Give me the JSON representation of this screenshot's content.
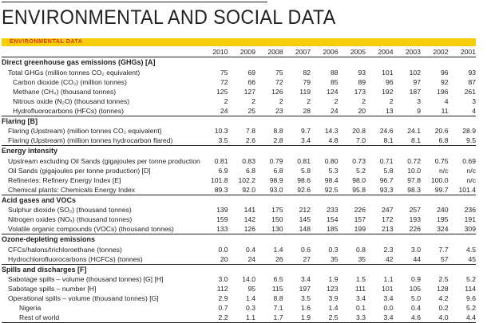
{
  "title": "ENVIRONMENTAL AND SOCIAL DATA",
  "section_bar": "ENVIRONMENTAL DATA",
  "accent_color": "#f6cd0a",
  "bar_text_color": "#e0301e",
  "years": [
    "2010",
    "2009",
    "2008",
    "2007",
    "2006",
    "2005",
    "2004",
    "2003",
    "2002",
    "2001"
  ],
  "sections": [
    {
      "heading": "Direct greenhouse gas emissions (GHGs) [A]",
      "rows": [
        {
          "label": "Total GHGs (million tonnes CO₂ equivalent)",
          "level": 1,
          "values": [
            "75",
            "69",
            "75",
            "82",
            "88",
            "93",
            "101",
            "102",
            "96",
            "93"
          ]
        },
        {
          "label": "Carbon dioxide (CO₂) (million tonnes)",
          "level": 2,
          "values": [
            "72",
            "66",
            "72",
            "79",
            "85",
            "89",
            "96",
            "97",
            "92",
            "87"
          ]
        },
        {
          "label": "Methane (CH₄) (thousand tonnes)",
          "level": 2,
          "values": [
            "125",
            "127",
            "126",
            "119",
            "124",
            "173",
            "192",
            "187",
            "196",
            "261"
          ]
        },
        {
          "label": "Nitrous oxide (N₂O) (thousand tonnes)",
          "level": 2,
          "values": [
            "2",
            "2",
            "2",
            "2",
            "2",
            "2",
            "2",
            "3",
            "4",
            "3"
          ]
        },
        {
          "label": "Hydrofluorocarbons (HFCs) (tonnes)",
          "level": 2,
          "values": [
            "24",
            "25",
            "23",
            "28",
            "24",
            "20",
            "13",
            "9",
            "11",
            "4"
          ]
        }
      ]
    },
    {
      "heading": "Flaring [B]",
      "rows": [
        {
          "label": "Flaring (Upstream) (million tonnes CO₂ equivalent)",
          "level": 1,
          "values": [
            "10.3",
            "7.8",
            "8.8",
            "9.7",
            "14.3",
            "20.8",
            "24.6",
            "24.1",
            "20.6",
            "28.9"
          ]
        },
        {
          "label": "Flaring (Upstream) (million tonnes hydrocarbon flared)",
          "level": 1,
          "values": [
            "3.5",
            "2.6",
            "2.8",
            "3.4",
            "4.8",
            "7.0",
            "8.1",
            "8.1",
            "6.8",
            "9.5"
          ]
        }
      ]
    },
    {
      "heading": "Energy intensity",
      "rows": [
        {
          "label": "Upstream excluding Oil Sands (gigajoules per tonne production) [C]",
          "level": 1,
          "values": [
            "0.81",
            "0.83",
            "0.79",
            "0.81",
            "0.80",
            "0.73",
            "0.71",
            "0.72",
            "0.75",
            "0.69"
          ]
        },
        {
          "label": "Oil Sands (gigajoules per tonne production) [D]",
          "level": 1,
          "values": [
            "6.9",
            "6.8",
            "6.8",
            "5.8",
            "5.3",
            "5.2",
            "5.8",
            "10.0",
            "n/c",
            "n/c"
          ]
        },
        {
          "label": "Refineries: Refinery Energy Index [E]",
          "level": 1,
          "values": [
            "101.8",
            "102.2",
            "98.9",
            "98.6",
            "98.4",
            "98.0",
            "96.7",
            "97.8",
            "100.0",
            "n/c"
          ]
        },
        {
          "label": "Chemical plants: Chemicals Energy Index",
          "level": 1,
          "values": [
            "89.3",
            "92.0",
            "93.0",
            "92.6",
            "92.5",
            "95.8",
            "93.3",
            "98.3",
            "99.7",
            "101.4"
          ]
        }
      ]
    },
    {
      "heading": "Acid gases and VOCs",
      "rows": [
        {
          "label": "Sulphur dioxide (SO₂) (thousand tonnes)",
          "level": 1,
          "values": [
            "139",
            "141",
            "175",
            "212",
            "233",
            "226",
            "247",
            "257",
            "240",
            "236"
          ]
        },
        {
          "label": "Nitrogen oxides (NOₓ) (thousand tonnes)",
          "level": 1,
          "values": [
            "159",
            "142",
            "150",
            "145",
            "154",
            "157",
            "172",
            "193",
            "195",
            "191"
          ]
        },
        {
          "label": "Volatile organic compounds (VOCs) (thousand tonnes)",
          "level": 1,
          "values": [
            "133",
            "126",
            "130",
            "148",
            "185",
            "199",
            "213",
            "226",
            "324",
            "309"
          ]
        }
      ]
    },
    {
      "heading": "Ozone-depleting emissions",
      "rows": [
        {
          "label": "CFCs/halons/trichloroethane (tonnes)",
          "level": 1,
          "values": [
            "0.0",
            "0.4",
            "1.4",
            "0.6",
            "0.3",
            "0.8",
            "2.3",
            "3.0",
            "7.7",
            "4.5"
          ]
        },
        {
          "label": "Hydrochlorofluorocarbons (HCFCs) (tonnes)",
          "level": 1,
          "values": [
            "20",
            "24",
            "26",
            "27",
            "35",
            "35",
            "42",
            "44",
            "57",
            "45"
          ]
        }
      ]
    },
    {
      "heading": "Spills and discharges [F]",
      "rows": [
        {
          "label": "Sabotage spills – volume (thousand tonnes) [G] [H]",
          "level": 1,
          "values": [
            "3.0",
            "14.0",
            "6.5",
            "3.4",
            "1.9",
            "1.5",
            "1.1",
            "0.9",
            "2.5",
            "5.2"
          ]
        },
        {
          "label": "Sabotage spills – number [H]",
          "level": 1,
          "values": [
            "112",
            "95",
            "115",
            "197",
            "123",
            "111",
            "101",
            "105",
            "128",
            "114"
          ]
        },
        {
          "label": "Operational spills – volume (thousand tonnes) [G]",
          "level": 1,
          "values": [
            "2.9",
            "1.4",
            "8.8",
            "3.5",
            "3.9",
            "3.4",
            "3.4",
            "5.0",
            "4.2",
            "9.6"
          ]
        },
        {
          "label": "Nigeria",
          "level": 3,
          "values": [
            "0.7",
            "0.3",
            "7.1",
            "1.6",
            "1.4",
            "0.1",
            "0.0",
            "0.4",
            "0.2",
            "5.2"
          ]
        },
        {
          "label": "Rest of world",
          "level": 3,
          "values": [
            "2.2",
            "1.1",
            "1.7",
            "1.9",
            "2.5",
            "3.3",
            "3.4",
            "4.6",
            "4.0",
            "4.4"
          ]
        }
      ]
    }
  ]
}
